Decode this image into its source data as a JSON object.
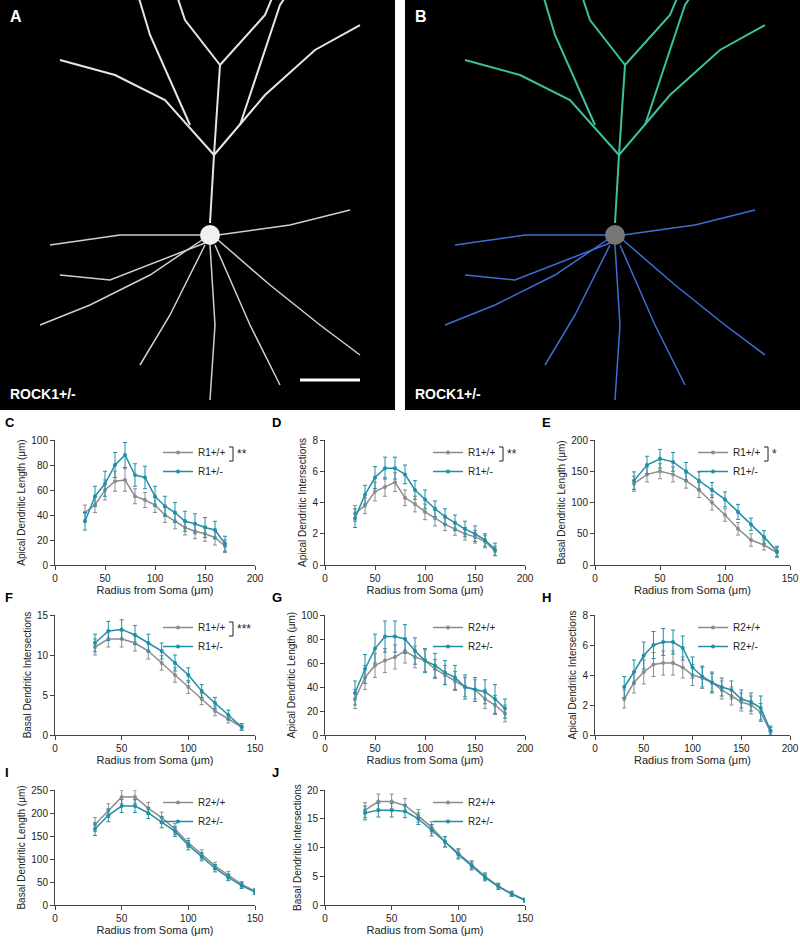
{
  "panels": [
    {
      "label": "A",
      "caption": "ROCK1+/-"
    },
    {
      "label": "B",
      "caption": "ROCK1+/-"
    }
  ],
  "chart_data": [
    {
      "panel": "C",
      "type": "line",
      "marker": "circle",
      "grid": false,
      "annotation": "**",
      "x_label": "Radius from Soma (μm)",
      "y_label": "Apical Dendritic Length (μm)",
      "xlim": [
        0,
        200
      ],
      "xticks": [
        0,
        50,
        100,
        150,
        200
      ],
      "ylim": [
        0,
        100
      ],
      "yticks": [
        0,
        20,
        40,
        60,
        80,
        100
      ],
      "x": [
        30,
        40,
        50,
        60,
        70,
        80,
        90,
        100,
        110,
        120,
        130,
        140,
        150,
        160,
        170
      ],
      "series": [
        {
          "name": "R1+/+",
          "color": "#8c8c8c",
          "values": [
            42,
            48,
            60,
            67,
            68,
            55,
            52,
            48,
            40,
            35,
            30,
            27,
            25,
            22,
            15
          ],
          "errors": [
            6,
            6,
            8,
            8,
            9,
            6,
            6,
            6,
            6,
            6,
            6,
            6,
            6,
            6,
            5
          ]
        },
        {
          "name": "R1+/-",
          "color": "#1f8fa8",
          "values": [
            35,
            55,
            65,
            80,
            88,
            72,
            70,
            55,
            47,
            42,
            35,
            33,
            30,
            28,
            17
          ],
          "errors": [
            7,
            8,
            10,
            10,
            10,
            9,
            9,
            8,
            8,
            8,
            8,
            8,
            8,
            7,
            6
          ]
        }
      ]
    },
    {
      "panel": "D",
      "type": "line",
      "marker": "circle",
      "grid": false,
      "annotation": "**",
      "x_label": "Radius from Soma (μm)",
      "y_label": "Apical Dendritic Intersections",
      "xlim": [
        0,
        200
      ],
      "xticks": [
        0,
        50,
        100,
        150,
        200
      ],
      "ylim": [
        0,
        8
      ],
      "yticks": [
        0,
        2,
        4,
        6,
        8
      ],
      "x": [
        30,
        40,
        50,
        60,
        70,
        80,
        90,
        100,
        110,
        120,
        130,
        140,
        150,
        160,
        170
      ],
      "series": [
        {
          "name": "R1+/+",
          "color": "#8c8c8c",
          "values": [
            3.3,
            3.8,
            4.7,
            5.0,
            5.3,
            4.3,
            3.9,
            3.4,
            3.0,
            2.6,
            2.3,
            2.0,
            1.8,
            1.5,
            0.9
          ],
          "errors": [
            0.5,
            0.5,
            0.6,
            0.6,
            0.6,
            0.5,
            0.5,
            0.5,
            0.5,
            0.4,
            0.4,
            0.4,
            0.4,
            0.4,
            0.3
          ]
        },
        {
          "name": "R1+/-",
          "color": "#1f8fa8",
          "values": [
            3.0,
            4.5,
            5.6,
            6.2,
            6.2,
            5.8,
            4.8,
            4.2,
            3.6,
            3.1,
            2.7,
            2.3,
            2.0,
            1.6,
            1.0
          ],
          "errors": [
            0.6,
            0.6,
            0.7,
            0.7,
            0.7,
            0.6,
            0.6,
            0.6,
            0.5,
            0.5,
            0.5,
            0.5,
            0.5,
            0.4,
            0.4
          ]
        }
      ]
    },
    {
      "panel": "E",
      "type": "line",
      "marker": "circle",
      "grid": false,
      "annotation": "*",
      "x_label": "Radius from Soma (μm)",
      "y_label": "Basal Dendritic Length (μm)",
      "xlim": [
        0,
        150
      ],
      "xticks": [
        0,
        50,
        100,
        150
      ],
      "ylim": [
        0,
        200
      ],
      "yticks": [
        0,
        50,
        100,
        150,
        200
      ],
      "x": [
        30,
        40,
        50,
        60,
        70,
        80,
        90,
        100,
        110,
        120,
        130,
        140
      ],
      "series": [
        {
          "name": "R1+/+",
          "color": "#8c8c8c",
          "values": [
            130,
            145,
            150,
            145,
            135,
            120,
            100,
            80,
            58,
            40,
            32,
            20
          ],
          "errors": [
            12,
            12,
            12,
            12,
            12,
            12,
            12,
            10,
            10,
            10,
            8,
            8
          ]
        },
        {
          "name": "R1+/-",
          "color": "#1f8fa8",
          "values": [
            135,
            160,
            170,
            165,
            150,
            135,
            120,
            105,
            85,
            65,
            45,
            22
          ],
          "errors": [
            14,
            14,
            15,
            15,
            14,
            14,
            12,
            12,
            12,
            10,
            10,
            8
          ]
        }
      ]
    },
    {
      "panel": "F",
      "type": "line",
      "marker": "circle",
      "grid": false,
      "annotation": "***",
      "x_label": "Radius from Soma (μm)",
      "y_label": "Basal Dendritic Intersections",
      "xlim": [
        0,
        150
      ],
      "xticks": [
        0,
        50,
        100,
        150
      ],
      "ylim": [
        0,
        15
      ],
      "yticks": [
        0,
        5,
        10,
        15
      ],
      "x": [
        30,
        40,
        50,
        60,
        70,
        80,
        90,
        100,
        110,
        120,
        130,
        140
      ],
      "series": [
        {
          "name": "R1+/+",
          "color": "#8c8c8c",
          "values": [
            11,
            12,
            12,
            11.5,
            10.5,
            9,
            7.5,
            6,
            4.5,
            3,
            2,
            1
          ],
          "errors": [
            1,
            1,
            1,
            1,
            1,
            0.9,
            0.9,
            0.8,
            0.7,
            0.6,
            0.5,
            0.4
          ]
        },
        {
          "name": "R1+/-",
          "color": "#1f8fa8",
          "values": [
            11.5,
            13,
            13.2,
            12.5,
            11.5,
            10.5,
            9,
            7.5,
            5.5,
            4,
            2.5,
            1
          ],
          "errors": [
            1.1,
            1.2,
            1.2,
            1.2,
            1.1,
            1,
            1,
            0.9,
            0.8,
            0.7,
            0.6,
            0.4
          ]
        }
      ]
    },
    {
      "panel": "G",
      "type": "line",
      "marker": "circle",
      "grid": false,
      "x_label": "Radius from Soma (μm)",
      "y_label": "Apical Dendritic Length (μm)",
      "xlim": [
        0,
        200
      ],
      "xticks": [
        0,
        50,
        100,
        150,
        200
      ],
      "ylim": [
        0,
        100
      ],
      "yticks": [
        0,
        20,
        40,
        60,
        80,
        100
      ],
      "x": [
        30,
        40,
        50,
        60,
        70,
        80,
        90,
        100,
        110,
        120,
        130,
        140,
        150,
        160,
        170,
        180
      ],
      "series": [
        {
          "name": "R2+/+",
          "color": "#8c8c8c",
          "values": [
            30,
            48,
            58,
            62,
            65,
            70,
            65,
            62,
            55,
            50,
            45,
            40,
            38,
            30,
            25,
            18
          ],
          "errors": [
            8,
            10,
            10,
            10,
            10,
            10,
            9,
            9,
            8,
            8,
            8,
            8,
            8,
            8,
            8,
            7
          ]
        },
        {
          "name": "R2+/-",
          "color": "#1f8fa8",
          "values": [
            35,
            55,
            72,
            82,
            82,
            80,
            70,
            62,
            58,
            52,
            48,
            40,
            38,
            36,
            30,
            22
          ],
          "errors": [
            10,
            12,
            12,
            13,
            13,
            12,
            11,
            10,
            10,
            10,
            10,
            10,
            10,
            10,
            12,
            8
          ]
        }
      ]
    },
    {
      "panel": "H",
      "type": "line",
      "marker": "circle",
      "grid": false,
      "x_label": "Radius from Soma (μm)",
      "y_label": "Apical Dendritic Intersections",
      "xlim": [
        0,
        200
      ],
      "xticks": [
        0,
        50,
        100,
        150,
        200
      ],
      "ylim": [
        0,
        8
      ],
      "yticks": [
        0,
        2,
        4,
        6,
        8
      ],
      "x": [
        30,
        40,
        50,
        60,
        70,
        80,
        90,
        100,
        110,
        120,
        130,
        140,
        150,
        160,
        170,
        180
      ],
      "series": [
        {
          "name": "R2+/+",
          "color": "#8c8c8c",
          "values": [
            2.4,
            3.5,
            4.2,
            4.7,
            4.8,
            4.8,
            4.5,
            4.0,
            3.8,
            3.5,
            3.0,
            2.6,
            2.2,
            2.0,
            1.5,
            0.2
          ],
          "errors": [
            0.6,
            0.7,
            0.8,
            0.8,
            0.8,
            0.8,
            0.7,
            0.7,
            0.7,
            0.6,
            0.6,
            0.6,
            0.6,
            0.6,
            0.6,
            0.3
          ]
        },
        {
          "name": "R2+/-",
          "color": "#1f8fa8",
          "values": [
            3.2,
            4.2,
            5.3,
            6.0,
            6.2,
            6.2,
            5.8,
            4.5,
            3.9,
            3.5,
            3.2,
            3.0,
            2.4,
            2.2,
            1.8,
            0.3
          ],
          "errors": [
            0.7,
            0.8,
            0.9,
            0.9,
            0.9,
            0.8,
            0.8,
            0.7,
            0.7,
            0.7,
            0.6,
            0.6,
            0.6,
            0.6,
            0.8,
            0.3
          ]
        }
      ]
    },
    {
      "panel": "I",
      "type": "line",
      "marker": "circle",
      "grid": false,
      "x_label": "Radius from Soma (μm)",
      "y_label": "Basal Dendritic Length (μm)",
      "xlim": [
        0,
        150
      ],
      "xticks": [
        0,
        50,
        100,
        150
      ],
      "ylim": [
        0,
        250
      ],
      "yticks": [
        0,
        50,
        100,
        150,
        200,
        250
      ],
      "x": [
        30,
        40,
        50,
        60,
        70,
        80,
        90,
        100,
        110,
        120,
        130,
        140,
        150
      ],
      "series": [
        {
          "name": "R2+/+",
          "color": "#8c8c8c",
          "values": [
            175,
            205,
            235,
            235,
            210,
            190,
            165,
            135,
            110,
            85,
            65,
            45,
            30
          ],
          "errors": [
            15,
            15,
            15,
            15,
            13,
            12,
            12,
            10,
            10,
            8,
            8,
            6,
            6
          ]
        },
        {
          "name": "R2+/-",
          "color": "#1f8fa8",
          "values": [
            165,
            195,
            215,
            215,
            200,
            180,
            160,
            130,
            105,
            80,
            60,
            42,
            28
          ],
          "errors": [
            14,
            14,
            14,
            14,
            12,
            12,
            11,
            10,
            9,
            8,
            7,
            6,
            5
          ]
        }
      ]
    },
    {
      "panel": "J",
      "type": "line",
      "marker": "circle",
      "grid": false,
      "x_label": "Radius from Soma (μm)",
      "y_label": "Basal Dendritic Intersections",
      "xlim": [
        0,
        150
      ],
      "xticks": [
        0,
        50,
        100,
        150
      ],
      "ylim": [
        0,
        20
      ],
      "yticks": [
        0,
        5,
        10,
        15,
        20
      ],
      "x": [
        30,
        40,
        50,
        60,
        70,
        80,
        90,
        100,
        110,
        120,
        130,
        140,
        150
      ],
      "series": [
        {
          "name": "R2+/+",
          "color": "#8c8c8c",
          "values": [
            16.5,
            18,
            18,
            17.3,
            15.5,
            13.5,
            11,
            9,
            7,
            5,
            3.3,
            2,
            0.9
          ],
          "errors": [
            1.3,
            1.3,
            1.3,
            1.2,
            1.1,
            1,
            0.9,
            0.8,
            0.7,
            0.6,
            0.5,
            0.4,
            0.3
          ]
        },
        {
          "name": "R2+/-",
          "color": "#1f8fa8",
          "values": [
            16,
            16.5,
            16.5,
            16.3,
            15,
            13,
            11,
            8.8,
            6.8,
            4.8,
            3.2,
            1.9,
            0.8
          ],
          "errors": [
            1.2,
            1.2,
            1.2,
            1.1,
            1,
            1,
            0.9,
            0.8,
            0.7,
            0.6,
            0.5,
            0.4,
            0.3
          ]
        }
      ]
    }
  ]
}
